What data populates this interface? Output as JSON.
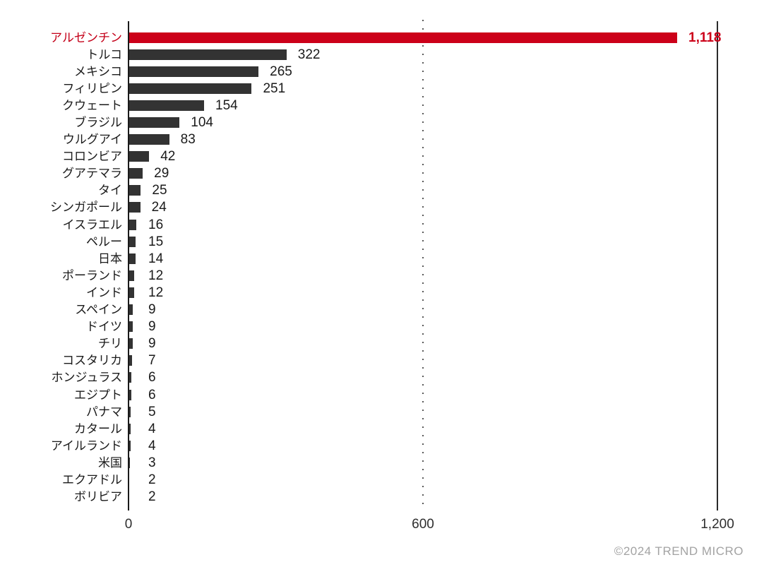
{
  "chart_data": {
    "type": "bar",
    "orientation": "horizontal",
    "title": "",
    "categories": [
      "アルゼンチン",
      "トルコ",
      "メキシコ",
      "フィリピン",
      "クウェート",
      "ブラジル",
      "ウルグアイ",
      "コロンビア",
      "グアテマラ",
      "タイ",
      "シンガポール",
      "イスラエル",
      "ペルー",
      "日本",
      "ポーランド",
      "インド",
      "スペイン",
      "ドイツ",
      "チリ",
      "コスタリカ",
      "ホンジュラス",
      "エジプト",
      "パナマ",
      "カタール",
      "アイルランド",
      "米国",
      "エクアドル",
      "ボリビア"
    ],
    "values": [
      1118,
      322,
      265,
      251,
      154,
      104,
      83,
      42,
      29,
      25,
      24,
      16,
      15,
      14,
      12,
      12,
      9,
      9,
      9,
      7,
      6,
      6,
      5,
      4,
      4,
      3,
      2,
      2
    ],
    "value_labels": [
      "1,118",
      "322",
      "265",
      "251",
      "154",
      "104",
      "83",
      "42",
      "29",
      "25",
      "24",
      "16",
      "15",
      "14",
      "12",
      "12",
      "9",
      "9",
      "9",
      "7",
      "6",
      "6",
      "5",
      "4",
      "4",
      "3",
      "2",
      "2"
    ],
    "highlight_index": 0,
    "xlim": [
      0,
      1200
    ],
    "x_ticks": [
      {
        "value": 0,
        "label": "0"
      },
      {
        "value": 600,
        "label": "600"
      },
      {
        "value": 1200,
        "label": "1,200"
      }
    ],
    "gridline_value": 600,
    "legend_position": "none",
    "grid": "dotted-vertical-at-600",
    "colors": {
      "highlight_bar": "#cc0019",
      "highlight_text": "#c40019",
      "bar": "#333333",
      "axis_line": "#1a1a1a",
      "right_boundary_line": "#2b2b2b",
      "grid_dot": "#5a5a5a",
      "tick_text": "#2e2e2e",
      "label_text": "#1a1a1a",
      "footer_text": "#a3a3a3"
    }
  },
  "footer": {
    "copyright": "©2024 TREND MICRO"
  }
}
